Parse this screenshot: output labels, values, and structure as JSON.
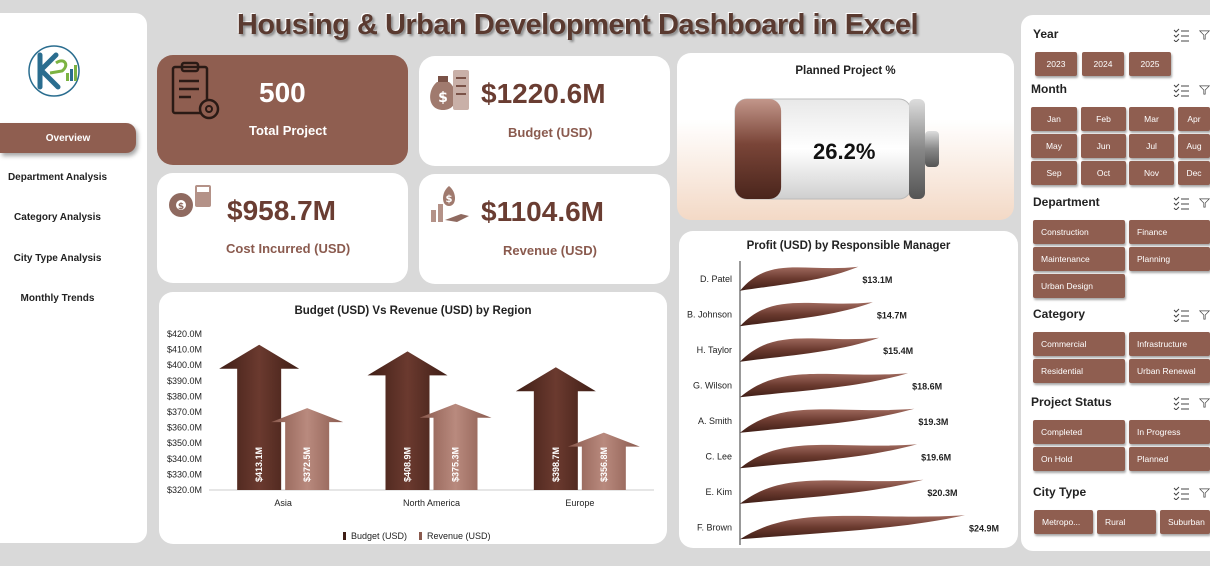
{
  "title": "Housing & Urban Development Dashboard in Excel",
  "nav": {
    "items": [
      "Overview",
      "Department Analysis",
      "Category Analysis",
      "City Type Analysis",
      "Monthly Trends"
    ],
    "active": 0
  },
  "kpis": {
    "total_project": {
      "value": "500",
      "label": "Total Project"
    },
    "budget": {
      "value": "$1220.6M",
      "label": "Budget (USD)"
    },
    "cost": {
      "value": "$958.7M",
      "label": "Cost Incurred (USD)"
    },
    "revenue": {
      "value": "$1104.6M",
      "label": "Revenue (USD)"
    }
  },
  "planned": {
    "title": "Planned Project %",
    "value": "26.2%",
    "fraction": 0.262
  },
  "colors": {
    "accent": "#8f5e50",
    "dark": "#5e342b",
    "light": "#a8766a"
  },
  "chart_data": [
    {
      "type": "bar",
      "title": "Budget (USD) Vs Revenue (USD) by Region",
      "categories": [
        "Asia",
        "North America",
        "Europe"
      ],
      "series": [
        {
          "name": "Budget (USD)",
          "values": [
            413.1,
            408.9,
            398.7
          ],
          "labels": [
            "$413.1M",
            "$408.9M",
            "$398.7M"
          ]
        },
        {
          "name": "Revenue (USD)",
          "values": [
            372.5,
            375.3,
            356.8
          ],
          "labels": [
            "$372.5M",
            "$375.3M",
            "$356.8M"
          ]
        }
      ],
      "ylim": [
        320,
        420
      ],
      "yticks": [
        "$420.0M",
        "$410.0M",
        "$400.0M",
        "$390.0M",
        "$380.0M",
        "$370.0M",
        "$360.0M",
        "$350.0M",
        "$340.0M",
        "$330.0M",
        "$320.0M"
      ],
      "legend": "bottom"
    },
    {
      "type": "bar",
      "orientation": "horizontal",
      "title": "Profit (USD) by Responsible Manager",
      "categories": [
        "D. Patel",
        "B. Johnson",
        "H. Taylor",
        "G. Wilson",
        "A. Smith",
        "C. Lee",
        "E. Kim",
        "F. Brown"
      ],
      "values": [
        13.1,
        14.7,
        15.4,
        18.6,
        19.3,
        19.6,
        20.3,
        24.9
      ],
      "labels": [
        "$13.1M",
        "$14.7M",
        "$15.4M",
        "$18.6M",
        "$19.3M",
        "$19.6M",
        "$20.3M",
        "$24.9M"
      ]
    }
  ],
  "filters": [
    {
      "name": "Year",
      "options": [
        "2023",
        "2024",
        "2025"
      ]
    },
    {
      "name": "Month",
      "options": [
        "Jan",
        "Feb",
        "Mar",
        "Apr",
        "May",
        "Jun",
        "Jul",
        "Aug",
        "Sep",
        "Oct",
        "Nov",
        "Dec"
      ]
    },
    {
      "name": "Department",
      "options": [
        "Construction",
        "Finance",
        "Maintenance",
        "Planning",
        "Urban Design"
      ]
    },
    {
      "name": "Category",
      "options": [
        "Commercial",
        "Infrastructure",
        "Residential",
        "Urban Renewal"
      ]
    },
    {
      "name": "Project Status",
      "options": [
        "Completed",
        "In Progress",
        "On Hold",
        "Planned"
      ]
    },
    {
      "name": "City Type",
      "options": [
        "Metropo...",
        "Rural",
        "Suburban"
      ]
    }
  ]
}
